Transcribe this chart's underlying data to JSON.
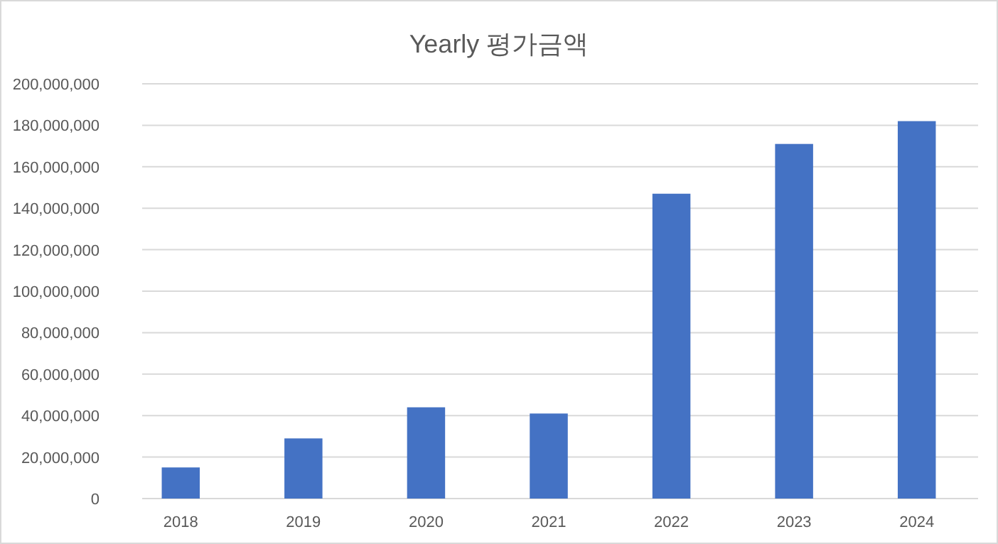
{
  "chart_data": {
    "type": "bar",
    "title": "Yearly 평가금액",
    "categories": [
      "2018",
      "2019",
      "2020",
      "2021",
      "2022",
      "2023",
      "2024"
    ],
    "series": [
      {
        "color": "#4472c4",
        "values": [
          15000000,
          29000000,
          44000000,
          41000000,
          147000000,
          171000000,
          182000000
        ]
      }
    ],
    "ylim": [
      0,
      200000000
    ],
    "yticks": [
      {
        "value": 0,
        "label": "0"
      },
      {
        "value": 20000000,
        "label": "20,000,000"
      },
      {
        "value": 40000000,
        "label": "40,000,000"
      },
      {
        "value": 60000000,
        "label": "60,000,000"
      },
      {
        "value": 80000000,
        "label": "80,000,000"
      },
      {
        "value": 100000000,
        "label": "100,000,000"
      },
      {
        "value": 120000000,
        "label": "120,000,000"
      },
      {
        "value": 140000000,
        "label": "140,000,000"
      },
      {
        "value": 160000000,
        "label": "160,000,000"
      },
      {
        "value": 180000000,
        "label": "180,000,000"
      },
      {
        "value": 200000000,
        "label": "200,000,000"
      }
    ],
    "grid": "y"
  }
}
